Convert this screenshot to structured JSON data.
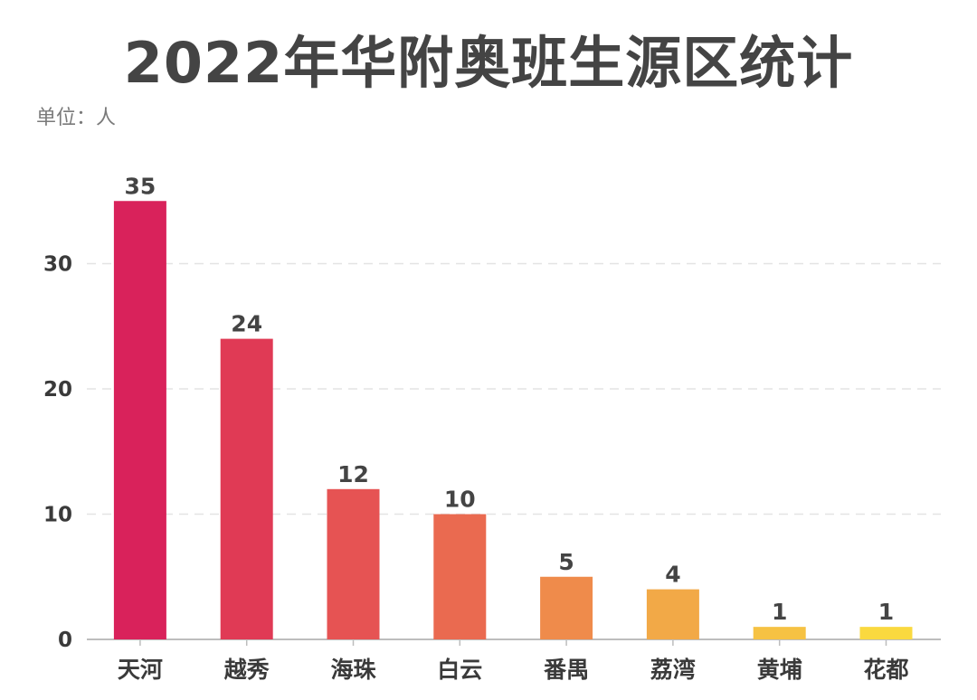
{
  "chart_data": {
    "type": "bar",
    "title": "2022年华附奥班生源区统计",
    "unit_label": "单位：人",
    "categories": [
      "天河",
      "越秀",
      "海珠",
      "白云",
      "番禺",
      "荔湾",
      "黄埔",
      "花都"
    ],
    "values": [
      35,
      24,
      12,
      10,
      5,
      4,
      1,
      1
    ],
    "bar_colors": [
      "#d9225b",
      "#e03a55",
      "#e65353",
      "#ea6a50",
      "#ef8b4b",
      "#f2a947",
      "#f6c243",
      "#fad93f"
    ],
    "y_ticks": [
      0,
      10,
      20,
      30
    ],
    "ylim": [
      0,
      38
    ],
    "grid": true,
    "grid_style": "dashed",
    "legend": "none",
    "data_labels": true
  }
}
